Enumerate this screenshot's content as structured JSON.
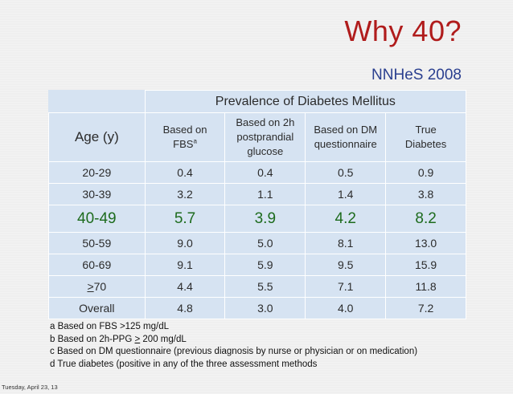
{
  "slide": {
    "title": "Why 40?",
    "subtitle": "NNHeS 2008"
  },
  "table": {
    "group_header": "Prevalence of Diabetes Mellitus",
    "age_header": "Age (y)",
    "columns": [
      {
        "line1": "Based on",
        "line2": "FBS",
        "sup": "a"
      },
      {
        "line1": "Based on 2h",
        "line2": "postprandial",
        "line3": "glucose"
      },
      {
        "line1": "Based on DM",
        "line2": "questionnaire"
      },
      {
        "line1": "True",
        "line2": "Diabetes"
      }
    ],
    "rows": [
      {
        "age": "20-29",
        "fbs": "0.4",
        "ppg": "0.4",
        "dmq": "0.5",
        "true_dm": "0.9"
      },
      {
        "age": "30-39",
        "fbs": "3.2",
        "ppg": "1.1",
        "dmq": "1.4",
        "true_dm": "3.8"
      },
      {
        "age": "40-49",
        "fbs": "5.7",
        "ppg": "3.9",
        "dmq": "4.2",
        "true_dm": "8.2"
      },
      {
        "age": "50-59",
        "fbs": "9.0",
        "ppg": "5.0",
        "dmq": "8.1",
        "true_dm": "13.0"
      },
      {
        "age": "60-69",
        "fbs": "9.1",
        "ppg": "5.9",
        "dmq": "9.5",
        "true_dm": "15.9"
      },
      {
        "age_prefix": ">",
        "age": "70",
        "fbs": "4.4",
        "ppg": "5.5",
        "dmq": "7.1",
        "true_dm": "11.8"
      },
      {
        "age": "Overall",
        "fbs": "4.8",
        "ppg": "3.0",
        "dmq": "4.0",
        "true_dm": "7.2"
      }
    ]
  },
  "footnotes": [
    {
      "pre": "a Based on FBS >125 mg/dL",
      "ul": "",
      "post": ""
    },
    {
      "pre": "b Based on 2h-PPG ",
      "ul": ">",
      "post": " 200 mg/dL"
    },
    {
      "pre": "c Based on DM questionnaire (previous diagnosis by nurse or physician or on medication)",
      "ul": "",
      "post": ""
    },
    {
      "pre": "d True diabetes (positive in any of the three assessment methods",
      "ul": "",
      "post": ""
    }
  ],
  "footer": "Tuesday, April 23, 13",
  "colors": {
    "title": "#b01c1c",
    "subtitle": "#2a3f8f",
    "table_fill": "#d6e3f2",
    "highlight_row": "#1d6b1d"
  }
}
